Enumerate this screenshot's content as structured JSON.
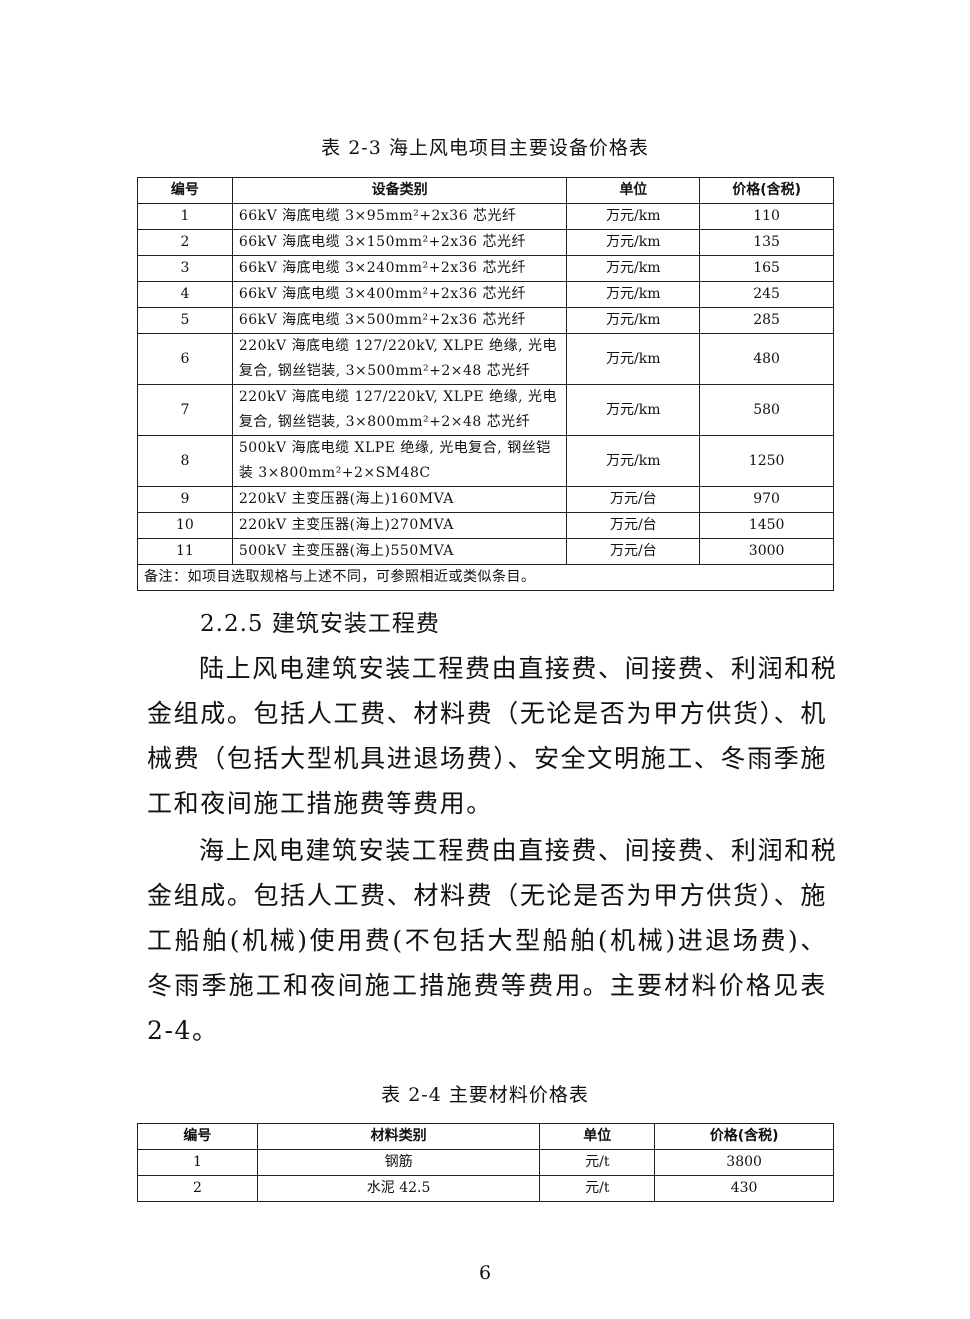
{
  "table1": {
    "caption": "表 2-3 海上风电项目主要设备价格表",
    "headers": [
      "编号",
      "设备类别",
      "单位",
      "价格(含税)"
    ],
    "rows": [
      [
        "1",
        "66kV 海底电缆 3×95mm²+2x36 芯光纤",
        "万元/km",
        "110"
      ],
      [
        "2",
        "66kV 海底电缆 3×150mm²+2x36 芯光纤",
        "万元/km",
        "135"
      ],
      [
        "3",
        "66kV 海底电缆 3×240mm²+2x36 芯光纤",
        "万元/km",
        "165"
      ],
      [
        "4",
        "66kV 海底电缆 3×400mm²+2x36 芯光纤",
        "万元/km",
        "245"
      ],
      [
        "5",
        "66kV 海底电缆 3×500mm²+2x36 芯光纤",
        "万元/km",
        "285"
      ],
      [
        "6",
        "220kV 海底电缆 127/220kV, XLPE 绝缘, 光电复合, 钢丝铠装, 3×500mm²+2×48 芯光纤",
        "万元/km",
        "480"
      ],
      [
        "7",
        "220kV 海底电缆 127/220kV, XLPE 绝缘, 光电复合, 钢丝铠装, 3×800mm²+2×48 芯光纤",
        "万元/km",
        "580"
      ],
      [
        "8",
        "500kV 海底电缆 XLPE 绝缘, 光电复合, 钢丝铠装 3×800mm²+2×SM48C",
        "万元/km",
        "1250"
      ],
      [
        "9",
        "220kV 主变压器(海上)160MVA",
        "万元/台",
        "970"
      ],
      [
        "10",
        "220kV 主变压器(海上)270MVA",
        "万元/台",
        "1450"
      ],
      [
        "11",
        "500kV 主变压器(海上)550MVA",
        "万元/台",
        "3000"
      ]
    ],
    "note": "备注：如项目选取规格与上述不同，可参照相近或类似条目。"
  },
  "section_heading": "2.2.5 建筑安装工程费",
  "paragraphs": [
    [
      "陆上风电建筑安装工程费由直接费、间接费、利润和税",
      "金组成。包括人工费、材料费（无论是否为甲方供货）、机",
      "械费（包括大型机具进退场费）、安全文明施工、冬雨季施",
      "工和夜间施工措施费等费用。"
    ],
    [
      "海上风电建筑安装工程费由直接费、间接费、利润和税",
      "金组成。包括人工费、材料费（无论是否为甲方供货）、施",
      "工船舶(机械)使用费(不包括大型船舶(机械)进退场费)、",
      "冬雨季施工和夜间施工措施费等费用。主要材料价格见表",
      "2-4。"
    ]
  ],
  "table2": {
    "caption": "表 2-4 主要材料价格表",
    "headers": [
      "编号",
      "材料类别",
      "单位",
      "价格(含税)"
    ],
    "rows": [
      [
        "1",
        "钢筋",
        "元/t",
        "3800"
      ],
      [
        "2",
        "水泥 42.5",
        "元/t",
        "430"
      ]
    ]
  },
  "page_number": "6"
}
